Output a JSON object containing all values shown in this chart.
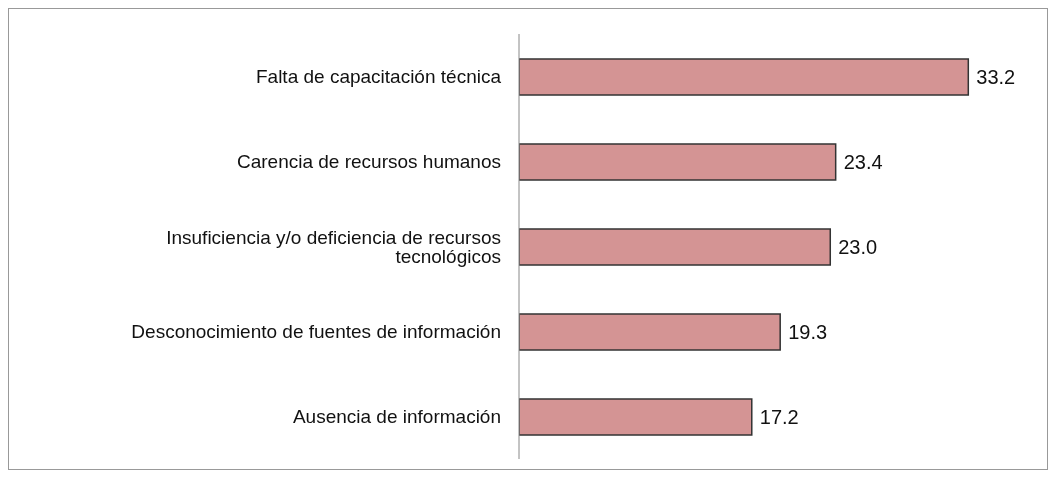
{
  "chart_data": {
    "type": "bar",
    "orientation": "horizontal",
    "categories": [
      "Falta de capacitación técnica",
      "Carencia de recursos humanos",
      "Insuficiencia y/o deficiencia de recursos tecnológicos",
      "Desconocimiento de fuentes de información",
      "Ausencia de información"
    ],
    "values": [
      33.2,
      23.4,
      23.0,
      19.3,
      17.2
    ],
    "value_labels": [
      "33.2",
      "23.4",
      "23.0",
      "19.3",
      "17.2"
    ],
    "color": "#d49494",
    "grid": false,
    "legend": false
  }
}
